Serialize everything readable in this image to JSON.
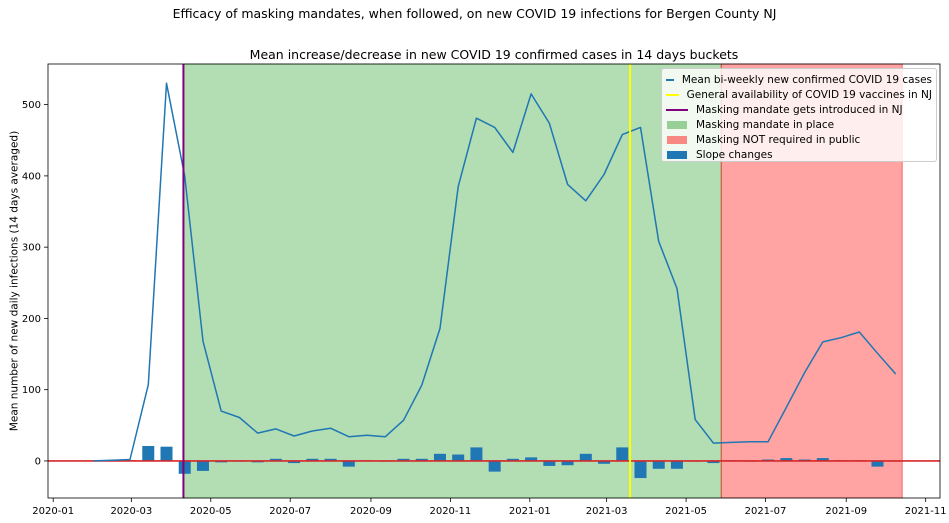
{
  "chart_data": {
    "type": "line",
    "suptitle": "Efficacy of masking mandates, when followed, on new COVID 19 infections for Bergen County NJ",
    "title": "Mean increase/decrease in new COVID 19 confirmed cases in 14 days buckets",
    "xlabel": "",
    "ylabel": "Mean number of new daily infections (14 days averaged)",
    "xlim": [
      "2019-12-28",
      "2021-11-12"
    ],
    "ylim": [
      -52,
      557
    ],
    "x_ticks": [
      "2020-01",
      "2020-03",
      "2020-05",
      "2020-07",
      "2020-09",
      "2020-11",
      "2021-01",
      "2021-03",
      "2021-05",
      "2021-07",
      "2021-09",
      "2021-11"
    ],
    "y_ticks": [
      0,
      100,
      200,
      300,
      400,
      500
    ],
    "grid": false,
    "legend_position": "top-right",
    "colors": {
      "line": "#1f77b4",
      "vaccine_line": "#ffff00",
      "mandate_line": "#800080",
      "mandate_span": "#2ca02c",
      "no_mask_span": "#ff0000",
      "bars": "#1f77b4",
      "zero_line": "#d62728"
    },
    "series": [
      {
        "name": "Mean bi-weekly new confirmed COVID 19 cases",
        "points": [
          [
            "2020-02-01",
            0
          ],
          [
            "2020-02-15",
            1
          ],
          [
            "2020-02-29",
            2
          ],
          [
            "2020-03-14",
            107
          ],
          [
            "2020-03-28",
            530
          ],
          [
            "2020-04-11",
            400
          ],
          [
            "2020-04-25",
            168
          ],
          [
            "2020-05-09",
            70
          ],
          [
            "2020-05-23",
            61
          ],
          [
            "2020-06-06",
            39
          ],
          [
            "2020-06-20",
            45
          ],
          [
            "2020-07-04",
            35
          ],
          [
            "2020-07-18",
            42
          ],
          [
            "2020-08-01",
            46
          ],
          [
            "2020-08-15",
            34
          ],
          [
            "2020-08-29",
            36
          ],
          [
            "2020-09-12",
            34
          ],
          [
            "2020-09-26",
            57
          ],
          [
            "2020-10-10",
            106
          ],
          [
            "2020-10-24",
            186
          ],
          [
            "2020-11-07",
            385
          ],
          [
            "2020-11-21",
            481
          ],
          [
            "2020-12-05",
            468
          ],
          [
            "2020-12-19",
            433
          ],
          [
            "2021-01-02",
            515
          ],
          [
            "2021-01-16",
            474
          ],
          [
            "2021-01-30",
            388
          ],
          [
            "2021-02-13",
            365
          ],
          [
            "2021-02-27",
            402
          ],
          [
            "2021-03-13",
            458
          ],
          [
            "2021-03-27",
            468
          ],
          [
            "2021-04-10",
            308
          ],
          [
            "2021-04-24",
            242
          ],
          [
            "2021-05-08",
            58
          ],
          [
            "2021-05-22",
            25
          ],
          [
            "2021-06-05",
            26
          ],
          [
            "2021-06-19",
            27
          ],
          [
            "2021-07-03",
            27
          ],
          [
            "2021-07-17",
            75
          ],
          [
            "2021-07-31",
            124
          ],
          [
            "2021-08-14",
            167
          ],
          [
            "2021-08-28",
            173
          ],
          [
            "2021-09-11",
            181
          ],
          [
            "2021-09-25",
            151
          ],
          [
            "2021-10-09",
            122
          ]
        ]
      },
      {
        "name": "Slope changes",
        "type": "bar",
        "points": [
          [
            "2020-02-01",
            0
          ],
          [
            "2020-02-15",
            1
          ],
          [
            "2020-02-29",
            1
          ],
          [
            "2020-03-14",
            21
          ],
          [
            "2020-03-28",
            20
          ],
          [
            "2020-04-11",
            -18
          ],
          [
            "2020-04-25",
            -14
          ],
          [
            "2020-05-09",
            -2
          ],
          [
            "2020-05-23",
            -1
          ],
          [
            "2020-06-06",
            -2
          ],
          [
            "2020-06-20",
            3
          ],
          [
            "2020-07-04",
            -3
          ],
          [
            "2020-07-18",
            3
          ],
          [
            "2020-08-01",
            3
          ],
          [
            "2020-08-15",
            -8
          ],
          [
            "2020-08-29",
            1
          ],
          [
            "2020-09-12",
            -1
          ],
          [
            "2020-09-26",
            3
          ],
          [
            "2020-10-10",
            3
          ],
          [
            "2020-10-24",
            10
          ],
          [
            "2020-11-07",
            9
          ],
          [
            "2020-11-21",
            19
          ],
          [
            "2020-12-05",
            -15
          ],
          [
            "2020-12-19",
            3
          ],
          [
            "2021-01-02",
            5
          ],
          [
            "2021-01-16",
            -7
          ],
          [
            "2021-01-30",
            -6
          ],
          [
            "2021-02-13",
            10
          ],
          [
            "2021-02-27",
            -4
          ],
          [
            "2021-03-13",
            19
          ],
          [
            "2021-03-27",
            -24
          ],
          [
            "2021-04-10",
            -11
          ],
          [
            "2021-04-24",
            -11
          ],
          [
            "2021-05-08",
            -1
          ],
          [
            "2021-05-22",
            -3
          ],
          [
            "2021-06-05",
            1
          ],
          [
            "2021-06-19",
            -1
          ],
          [
            "2021-07-03",
            2
          ],
          [
            "2021-07-17",
            4
          ],
          [
            "2021-07-31",
            2
          ],
          [
            "2021-08-14",
            4
          ],
          [
            "2021-08-28",
            1
          ],
          [
            "2021-09-11",
            1
          ],
          [
            "2021-09-25",
            -8
          ],
          [
            "2021-10-09",
            -1
          ]
        ]
      }
    ],
    "vlines": [
      {
        "name": "General availability of COVID 19 vaccines in NJ",
        "x": "2021-03-19"
      },
      {
        "name": "Masking mandate gets introduced in NJ",
        "x": "2020-04-10"
      }
    ],
    "spans": [
      {
        "name": "Masking mandate in place",
        "x0": "2020-04-10",
        "x1": "2021-05-28"
      },
      {
        "name": "Masking NOT required in public",
        "x0": "2021-05-28",
        "x1": "2021-10-14"
      }
    ],
    "legend": [
      "Mean bi-weekly new confirmed COVID 19 cases",
      "General availability of COVID 19 vaccines in NJ",
      "Masking mandate gets introduced in NJ",
      "Masking mandate in place",
      "Masking NOT required in public",
      "Slope changes"
    ]
  }
}
